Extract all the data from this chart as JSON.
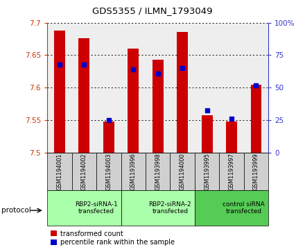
{
  "title": "GDS5355 / ILMN_1793049",
  "samples": [
    "GSM1194001",
    "GSM1194002",
    "GSM1194003",
    "GSM1193996",
    "GSM1193998",
    "GSM1194000",
    "GSM1193995",
    "GSM1193997",
    "GSM1193999"
  ],
  "red_values": [
    7.688,
    7.676,
    7.548,
    7.66,
    7.643,
    7.686,
    7.557,
    7.548,
    7.604
  ],
  "blue_values": [
    7.635,
    7.635,
    7.55,
    7.628,
    7.622,
    7.63,
    7.565,
    7.552,
    7.603
  ],
  "ymin": 7.5,
  "ymax": 7.7,
  "yticks": [
    7.5,
    7.55,
    7.6,
    7.65,
    7.7
  ],
  "right_yticks": [
    0,
    25,
    50,
    75,
    100
  ],
  "groups": [
    {
      "label": "RBP2-siRNA-1\ntransfected",
      "start": 0,
      "end": 3,
      "color": "#aaffaa"
    },
    {
      "label": "RBP2-siRNA-2\ntransfected",
      "start": 3,
      "end": 6,
      "color": "#aaffaa"
    },
    {
      "label": "control siRNA\ntransfected",
      "start": 6,
      "end": 9,
      "color": "#55cc55"
    }
  ],
  "bar_color": "#cc0000",
  "dot_color": "#0000cc",
  "bar_width": 0.45,
  "dot_size": 18,
  "left_label_color": "#cc3300",
  "right_label_color": "#3333cc",
  "protocol_label": "protocol",
  "legend_red": "transformed count",
  "legend_blue": "percentile rank within the sample",
  "plot_bg_color": "#eeeeee",
  "sample_box_color": "#d0d0d0"
}
